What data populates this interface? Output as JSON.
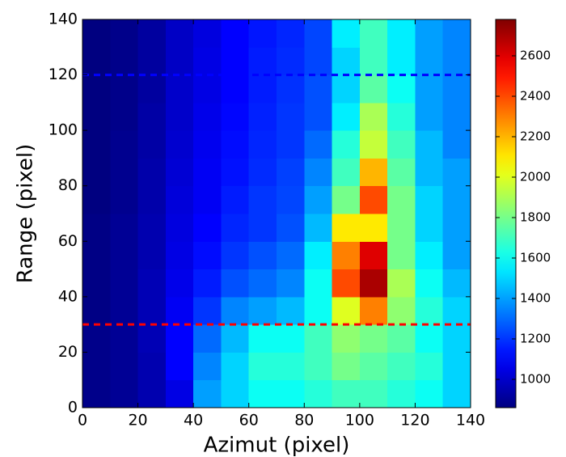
{
  "chart_data": {
    "type": "heatmap",
    "xlabel": "Azimut (pixel)",
    "ylabel": "Range (pixel)",
    "xlim": [
      0,
      140
    ],
    "ylim": [
      0,
      140
    ],
    "xticks": [
      0,
      20,
      40,
      60,
      80,
      100,
      120,
      140
    ],
    "yticks": [
      0,
      20,
      40,
      60,
      80,
      100,
      120,
      140
    ],
    "xbins": [
      0,
      10,
      20,
      30,
      40,
      50,
      60,
      70,
      80,
      90,
      100,
      110,
      120,
      130,
      140
    ],
    "ybins": [
      0,
      10,
      20,
      30,
      40,
      50,
      60,
      70,
      80,
      90,
      100,
      110,
      120,
      130,
      140
    ],
    "colormap": "jet",
    "clim": [
      860,
      2780
    ],
    "cticks": [
      1000,
      1200,
      1400,
      1600,
      1800,
      2000,
      2200,
      2400,
      2600
    ],
    "values": [
      [
        880,
        900,
        950,
        1050,
        1400,
        1500,
        1600,
        1600,
        1650,
        1700,
        1700,
        1650,
        1600,
        1500
      ],
      [
        880,
        900,
        950,
        1100,
        1350,
        1500,
        1650,
        1650,
        1700,
        1800,
        1750,
        1700,
        1650,
        1500
      ],
      [
        880,
        900,
        960,
        1100,
        1300,
        1450,
        1600,
        1600,
        1700,
        1850,
        1800,
        1750,
        1600,
        1500
      ],
      [
        870,
        900,
        960,
        1080,
        1200,
        1350,
        1400,
        1450,
        1600,
        2000,
        2300,
        1850,
        1650,
        1500
      ],
      [
        870,
        900,
        960,
        1060,
        1150,
        1250,
        1300,
        1350,
        1600,
        2400,
        2700,
        1900,
        1600,
        1450
      ],
      [
        870,
        900,
        950,
        1050,
        1120,
        1200,
        1250,
        1300,
        1550,
        2300,
        2600,
        1800,
        1550,
        1400
      ],
      [
        870,
        900,
        950,
        1040,
        1100,
        1170,
        1200,
        1250,
        1450,
        2100,
        2100,
        1800,
        1500,
        1400
      ],
      [
        860,
        890,
        940,
        1030,
        1080,
        1150,
        1200,
        1230,
        1400,
        1800,
        2400,
        1800,
        1500,
        1400
      ],
      [
        860,
        890,
        940,
        1020,
        1080,
        1130,
        1180,
        1220,
        1350,
        1700,
        2200,
        1750,
        1450,
        1400
      ],
      [
        860,
        890,
        930,
        1010,
        1070,
        1120,
        1170,
        1200,
        1300,
        1650,
        1950,
        1700,
        1450,
        1350
      ],
      [
        860,
        880,
        930,
        1000,
        1060,
        1110,
        1160,
        1200,
        1250,
        1550,
        1900,
        1650,
        1400,
        1350
      ],
      [
        860,
        880,
        920,
        1000,
        1050,
        1100,
        1150,
        1190,
        1250,
        1500,
        1750,
        1600,
        1400,
        1350
      ],
      [
        860,
        880,
        920,
        990,
        1050,
        1100,
        1150,
        1180,
        1230,
        1500,
        1700,
        1550,
        1400,
        1350
      ],
      [
        860,
        880,
        920,
        990,
        1040,
        1100,
        1140,
        1170,
        1230,
        1550,
        1700,
        1550,
        1400,
        1350
      ]
    ],
    "hlines": [
      {
        "y": 120,
        "color": "#0000ff"
      },
      {
        "y": 30,
        "color": "#ff0000"
      }
    ]
  }
}
